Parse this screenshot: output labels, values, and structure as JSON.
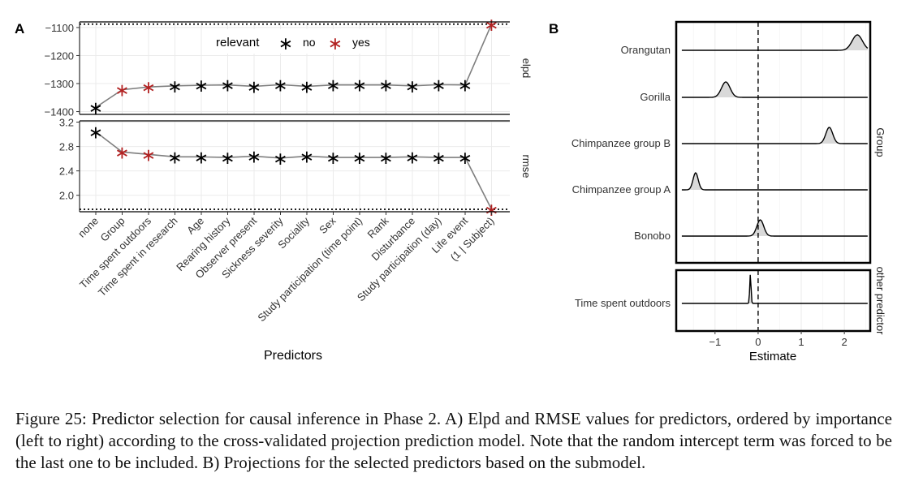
{
  "panel_a_label": "A",
  "panel_b_label": "B",
  "caption": "Figure 25: Predictor selection for causal inference in Phase 2. A) Elpd and RMSE values for predictors, ordered by importance (left to right) according to the cross-validated projection prediction model. Note that the random intercept term was forced to be the last one to be included. B) Projections for the selected predictors based on the submodel.",
  "colors": {
    "no": "#000000",
    "yes": "#b22222",
    "line": "#7f7f7f",
    "density_fill": "#d9d9d9"
  },
  "chart_data": [
    {
      "type": "line",
      "panel": "A",
      "xlabel": "Predictors",
      "legend": {
        "title": "relevant",
        "entries": [
          "no",
          "yes"
        ],
        "position": "top-center"
      },
      "categories": [
        "none",
        "Group",
        "Time spent outdoors",
        "Time spent in research",
        "Age",
        "Rearing history",
        "Observer present",
        "Sickness severity",
        "Sociality",
        "Sex",
        "Study participation (time point)",
        "Rank",
        "Disturbance",
        "Study participation (day)",
        "Life event",
        "(1 | Subject)"
      ],
      "relevant": [
        "no",
        "yes",
        "yes",
        "no",
        "no",
        "no",
        "no",
        "no",
        "no",
        "no",
        "no",
        "no",
        "no",
        "no",
        "no",
        "yes"
      ],
      "facets": [
        {
          "strip": "elpd",
          "ylim": [
            -1410,
            -1080
          ],
          "yticks": [
            -1100,
            -1200,
            -1300,
            -1400
          ],
          "ytick_labels": [
            "−1100",
            "−1200",
            "−1300",
            "−1400"
          ],
          "reference_line": -1088,
          "values": [
            -1385,
            -1322,
            -1312,
            -1308,
            -1306,
            -1305,
            -1310,
            -1304,
            -1310,
            -1305,
            -1305,
            -1305,
            -1308,
            -1304,
            -1305,
            -1088
          ]
        },
        {
          "strip": "rmse",
          "ylim": [
            1.73,
            3.22
          ],
          "yticks": [
            3.2,
            2.8,
            2.4,
            2.0
          ],
          "ytick_labels": [
            "3.2",
            "2.8",
            "2.4",
            "2.0"
          ],
          "reference_line": 1.77,
          "values": [
            3.04,
            2.71,
            2.67,
            2.63,
            2.63,
            2.62,
            2.64,
            2.61,
            2.64,
            2.62,
            2.62,
            2.62,
            2.63,
            2.62,
            2.62,
            1.77
          ]
        }
      ]
    },
    {
      "type": "area",
      "panel": "B",
      "xlabel": "Estimate",
      "xlim": [
        -1.9,
        2.6
      ],
      "xticks": [
        -1,
        0,
        1,
        2
      ],
      "xtick_labels": [
        "−1",
        "0",
        "1",
        "2"
      ],
      "zero_line": 0,
      "facets": [
        {
          "strip": "Group",
          "series": [
            {
              "name": "Orangutan",
              "mean": 2.3,
              "sd": 0.12,
              "height": 0.95
            },
            {
              "name": "Gorilla",
              "mean": -0.75,
              "sd": 0.1,
              "height": 0.95
            },
            {
              "name": "Chimpanzee group B",
              "mean": 1.65,
              "sd": 0.08,
              "height": 1.0
            },
            {
              "name": "Chimpanzee group A",
              "mean": -1.45,
              "sd": 0.06,
              "height": 1.05
            },
            {
              "name": "Bonobo",
              "mean": 0.05,
              "sd": 0.08,
              "height": 1.0
            }
          ]
        },
        {
          "strip": "other predictor",
          "series": [
            {
              "name": "Time spent outdoors",
              "mean": -0.18,
              "sd": 0.015,
              "height": 1.0
            }
          ]
        }
      ]
    }
  ]
}
